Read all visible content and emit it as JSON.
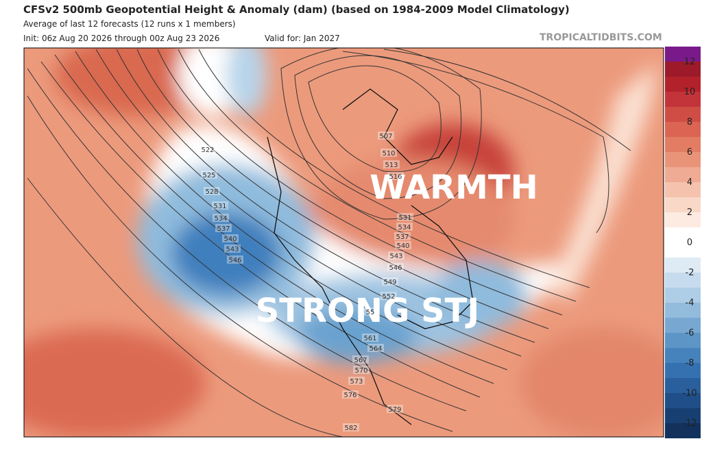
{
  "header": {
    "title": "CFSv2 500mb Geopotential Height & Anomaly (dam) (based on 1984-2009 Model Climatology)",
    "subtitle": "Average of last 12 forecasts (12 runs x 1 members)",
    "init": "Init: 06z Aug 20 2026 through 00z Aug 23 2026",
    "valid": "Valid for: Jan 2027",
    "watermark": "TROPICALTIDBITS.COM"
  },
  "annotations": [
    "WARMTH",
    "STRONG STJ"
  ],
  "contour_labels": [
    "522",
    "525",
    "528",
    "531",
    "534",
    "537",
    "540",
    "543",
    "546",
    "507",
    "510",
    "513",
    "516",
    "531",
    "534",
    "537",
    "540",
    "543",
    "546",
    "549",
    "552",
    "55",
    "561",
    "564",
    "567",
    "570",
    "573",
    "576",
    "579",
    "582"
  ],
  "colorbar": {
    "labels": [
      "12",
      "10",
      "8",
      "6",
      "4",
      "2",
      "0",
      "-2",
      "-4",
      "-6",
      "-8",
      "-10",
      "-12"
    ]
  }
}
